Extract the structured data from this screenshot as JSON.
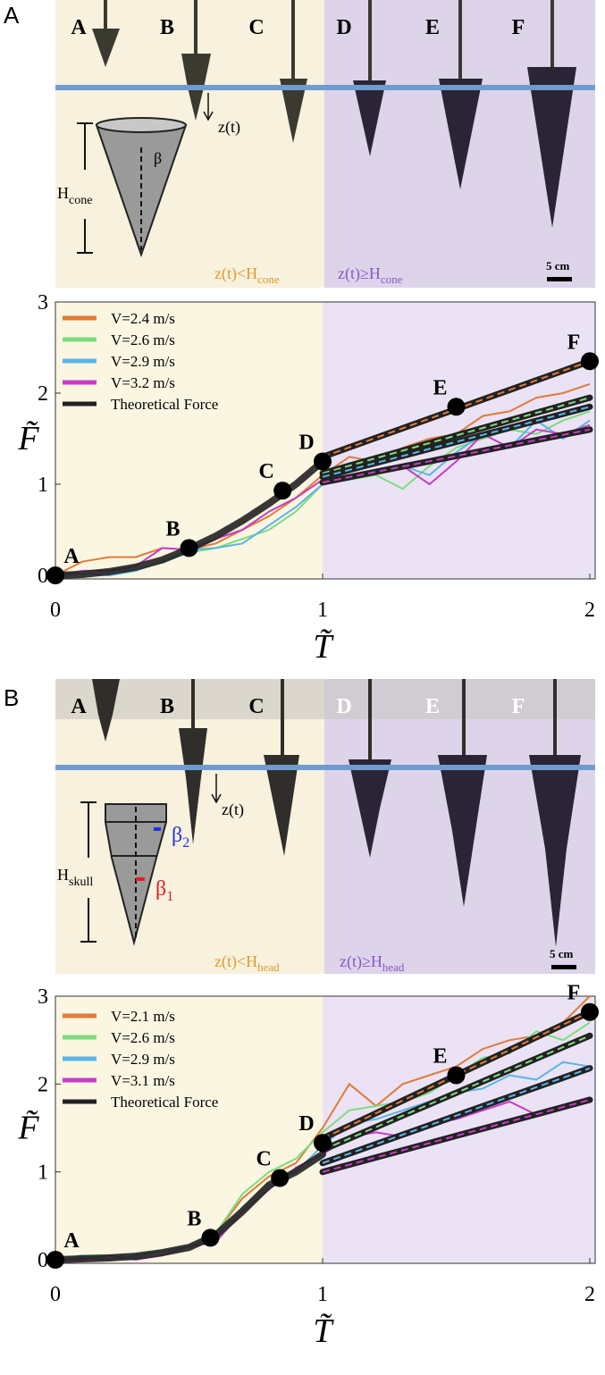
{
  "panel_labels": [
    "A",
    "B"
  ],
  "photo_strips": [
    {
      "labels": [
        "A",
        "B",
        "C",
        "D",
        "E",
        "F"
      ],
      "z_label": "z(t)",
      "height_label": "H",
      "height_sub": "cone",
      "angle_labels": [
        {
          "text": "β"
        }
      ],
      "left_caption": "z(t)<H",
      "left_sub": "cone",
      "right_caption": "z(t)≥H",
      "right_sub": "cone",
      "scale": "5 cm"
    },
    {
      "labels": [
        "A",
        "B",
        "C",
        "D",
        "E",
        "F"
      ],
      "z_label": "z(t)",
      "height_label": "H",
      "height_sub": "skull",
      "angle_labels": [
        {
          "text": "β",
          "sub": "2"
        },
        {
          "text": "β",
          "sub": "1"
        }
      ],
      "left_caption": "z(t)<H",
      "left_sub": "head",
      "right_caption": "z(t)≥H",
      "right_sub": "head",
      "scale": "5 cm"
    }
  ],
  "chart_data": [
    {
      "type": "line",
      "x_label": "T̃",
      "y_label": "F̃",
      "xlim": [
        0,
        2
      ],
      "ylim": [
        0,
        3
      ],
      "xticks": [
        0,
        1,
        2
      ],
      "yticks": [
        0,
        1,
        2,
        3
      ],
      "split_x": 1,
      "left_fill": "#fbf6e2",
      "right_fill": "#ebe3f5",
      "x": [
        0,
        0.1,
        0.2,
        0.3,
        0.4,
        0.5,
        0.6,
        0.7,
        0.8,
        0.9,
        1.0,
        1.1,
        1.2,
        1.3,
        1.4,
        1.5,
        1.6,
        1.7,
        1.8,
        1.9,
        2.0
      ],
      "series": [
        {
          "name": "V=2.4 m/s",
          "color": "#e07b39",
          "values": [
            0,
            0.15,
            0.2,
            0.2,
            0.3,
            0.28,
            0.35,
            0.5,
            0.65,
            0.85,
            1.1,
            1.3,
            1.25,
            1.4,
            1.5,
            1.55,
            1.75,
            1.8,
            1.95,
            2.0,
            2.1
          ],
          "fit": [
            null,
            null,
            null,
            null,
            null,
            null,
            null,
            null,
            null,
            null,
            1.3,
            1.405,
            1.51,
            1.615,
            1.72,
            1.825,
            1.93,
            2.035,
            2.14,
            2.245,
            2.35
          ]
        },
        {
          "name": "V=2.6 m/s",
          "color": "#7ddc7d",
          "values": [
            0,
            0.05,
            0.05,
            0.05,
            0.15,
            0.25,
            0.3,
            0.4,
            0.5,
            0.7,
            1.0,
            1.05,
            1.1,
            0.95,
            1.2,
            1.4,
            1.5,
            1.6,
            1.55,
            1.7,
            1.8
          ],
          "fit": [
            null,
            null,
            null,
            null,
            null,
            null,
            null,
            null,
            null,
            null,
            1.12,
            1.203,
            1.286,
            1.369,
            1.452,
            1.535,
            1.618,
            1.701,
            1.784,
            1.867,
            1.95
          ]
        },
        {
          "name": "V=2.9 m/s",
          "color": "#5ab4e8",
          "values": [
            0,
            0.02,
            0.0,
            0.05,
            0.15,
            0.28,
            0.3,
            0.35,
            0.55,
            0.75,
            1.0,
            1.05,
            1.15,
            1.2,
            1.1,
            1.35,
            1.55,
            1.4,
            1.7,
            1.5,
            1.7
          ],
          "fit": [
            null,
            null,
            null,
            null,
            null,
            null,
            null,
            null,
            null,
            null,
            1.08,
            1.157,
            1.234,
            1.311,
            1.388,
            1.465,
            1.542,
            1.619,
            1.696,
            1.773,
            1.85
          ]
        },
        {
          "name": "V=3.2 m/s",
          "color": "#c83cc8",
          "values": [
            0,
            0.05,
            0.05,
            0.1,
            0.3,
            0.28,
            0.4,
            0.5,
            0.7,
            0.85,
            1.05,
            1.1,
            1.15,
            1.2,
            1.0,
            1.25,
            1.55,
            1.4,
            1.6,
            1.55,
            1.65
          ],
          "fit": [
            null,
            null,
            null,
            null,
            null,
            null,
            null,
            null,
            null,
            null,
            1.02,
            1.078,
            1.136,
            1.194,
            1.252,
            1.31,
            1.368,
            1.426,
            1.484,
            1.542,
            1.6
          ]
        },
        {
          "name": "Theoretical Force",
          "color": "#222222",
          "values": [
            0,
            0.01,
            0.04,
            0.09,
            0.17,
            0.29,
            0.43,
            0.6,
            0.79,
            1.0,
            1.25,
            null,
            null,
            null,
            null,
            null,
            null,
            null,
            null,
            null,
            null
          ]
        }
      ],
      "points": [
        {
          "label": "A",
          "x": 0,
          "y": 0
        },
        {
          "label": "B",
          "x": 0.5,
          "y": 0.3
        },
        {
          "label": "C",
          "x": 0.85,
          "y": 0.93
        },
        {
          "label": "D",
          "x": 1,
          "y": 1.25
        },
        {
          "label": "E",
          "x": 1.5,
          "y": 1.85
        },
        {
          "label": "F",
          "x": 2,
          "y": 2.35
        }
      ]
    },
    {
      "type": "line",
      "x_label": "T̃",
      "y_label": "F̃",
      "xlim": [
        0,
        2
      ],
      "ylim": [
        0,
        3
      ],
      "xticks": [
        0,
        1,
        2
      ],
      "yticks": [
        0,
        1,
        2,
        3
      ],
      "split_x": 1,
      "left_fill": "#fbf6e2",
      "right_fill": "#ebe3f5",
      "x": [
        0,
        0.1,
        0.2,
        0.3,
        0.4,
        0.5,
        0.6,
        0.7,
        0.8,
        0.9,
        1.0,
        1.1,
        1.2,
        1.3,
        1.4,
        1.5,
        1.6,
        1.7,
        1.8,
        1.9,
        2.0
      ],
      "series": [
        {
          "name": "V=2.1 m/s",
          "color": "#e07b39",
          "values": [
            0,
            0.02,
            0.0,
            0.05,
            0.1,
            0.15,
            0.3,
            0.7,
            0.95,
            1.1,
            1.5,
            2.0,
            1.75,
            2.0,
            2.1,
            2.2,
            2.4,
            2.5,
            2.55,
            2.7,
            3.0
          ],
          "fit": [
            null,
            null,
            null,
            null,
            null,
            null,
            null,
            null,
            null,
            null,
            1.38,
            1.524,
            1.668,
            1.812,
            1.956,
            2.1,
            2.244,
            2.388,
            2.532,
            2.676,
            2.82
          ]
        },
        {
          "name": "V=2.6 m/s",
          "color": "#7ddc7d",
          "values": [
            0,
            0.05,
            0.05,
            0.02,
            0.1,
            0.15,
            0.3,
            0.75,
            1.0,
            1.15,
            1.45,
            1.7,
            1.75,
            1.8,
            1.9,
            2.1,
            2.3,
            2.35,
            2.6,
            2.5,
            2.7
          ],
          "fit": [
            null,
            null,
            null,
            null,
            null,
            null,
            null,
            null,
            null,
            null,
            1.25,
            1.38,
            1.51,
            1.64,
            1.77,
            1.9,
            2.03,
            2.16,
            2.29,
            2.42,
            2.55
          ]
        },
        {
          "name": "V=2.9 m/s",
          "color": "#5ab4e8",
          "values": [
            0,
            0.05,
            0.0,
            0.05,
            0.1,
            0.15,
            0.25,
            0.6,
            0.85,
            1.0,
            1.3,
            1.55,
            1.6,
            1.7,
            1.8,
            1.9,
            1.95,
            2.1,
            2.05,
            2.25,
            2.2
          ],
          "fit": [
            null,
            null,
            null,
            null,
            null,
            null,
            null,
            null,
            null,
            null,
            1.1,
            1.208,
            1.316,
            1.424,
            1.532,
            1.64,
            1.748,
            1.856,
            1.964,
            2.072,
            2.18
          ]
        },
        {
          "name": "V=3.1 m/s",
          "color": "#c83cc8",
          "values": [
            0,
            0.0,
            0.05,
            0.0,
            0.05,
            0.15,
            0.2,
            0.55,
            0.8,
            1.05,
            1.2,
            1.4,
            1.45,
            1.4,
            1.55,
            1.6,
            1.7,
            1.8,
            1.65,
            1.75,
            1.85
          ],
          "fit": [
            null,
            null,
            null,
            null,
            null,
            null,
            null,
            null,
            null,
            null,
            1.0,
            1.082,
            1.164,
            1.246,
            1.328,
            1.41,
            1.492,
            1.574,
            1.656,
            1.738,
            1.82
          ]
        },
        {
          "name": "Theoretical Force",
          "color": "#222222",
          "values": [
            0,
            0.01,
            0.02,
            0.04,
            0.08,
            0.14,
            0.28,
            0.55,
            0.85,
            1.0,
            1.2,
            null,
            null,
            null,
            null,
            null,
            null,
            null,
            null,
            null,
            null
          ]
        }
      ],
      "points": [
        {
          "label": "A",
          "x": 0,
          "y": 0
        },
        {
          "label": "B",
          "x": 0.58,
          "y": 0.25
        },
        {
          "label": "C",
          "x": 0.84,
          "y": 0.93
        },
        {
          "label": "D",
          "x": 1,
          "y": 1.33
        },
        {
          "label": "E",
          "x": 1.5,
          "y": 2.1
        },
        {
          "label": "F",
          "x": 2,
          "y": 2.82
        }
      ]
    }
  ]
}
